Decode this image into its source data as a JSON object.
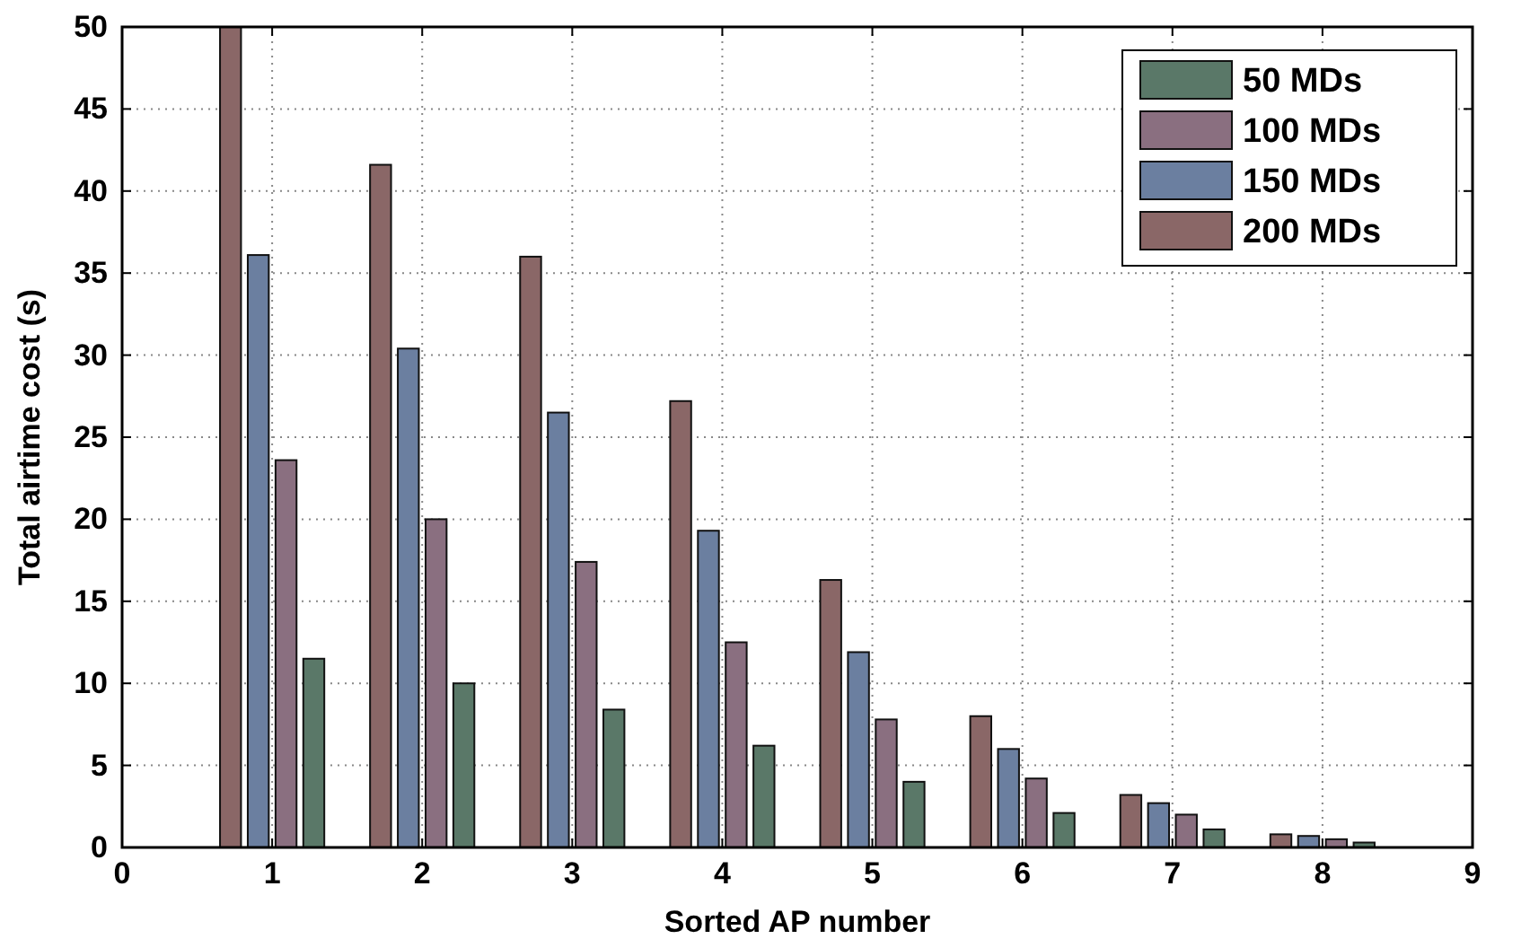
{
  "chart_data": {
    "type": "bar",
    "xlabel": "Sorted AP number",
    "ylabel": "Total airtime cost (s)",
    "x": [
      1,
      2,
      3,
      4,
      5,
      6,
      7,
      8
    ],
    "series": [
      {
        "name": "50 MDs",
        "color": "#5a7868",
        "values": [
          11.5,
          10,
          8.4,
          6.2,
          4.0,
          2.1,
          1.1,
          0.3
        ]
      },
      {
        "name": "100 MDs",
        "color": "#8a6f80",
        "values": [
          23.6,
          20,
          17.4,
          12.5,
          7.8,
          4.2,
          2.0,
          0.5
        ]
      },
      {
        "name": "150 MDs",
        "color": "#6b7fa0",
        "values": [
          36.1,
          30.4,
          26.5,
          19.3,
          11.9,
          6.0,
          2.7,
          0.7
        ]
      },
      {
        "name": "200 MDs",
        "color": "#8a6767",
        "values": [
          50,
          41.6,
          36,
          27.2,
          16.3,
          8.0,
          3.2,
          0.8
        ]
      }
    ],
    "xlim": [
      0,
      9
    ],
    "xticks": [
      0,
      1,
      2,
      3,
      4,
      5,
      6,
      7,
      8,
      9
    ],
    "ylim": [
      0,
      50
    ],
    "yticks": [
      0,
      5,
      10,
      15,
      20,
      25,
      30,
      35,
      40,
      45,
      50
    ],
    "grid": true,
    "legend": "top right"
  }
}
